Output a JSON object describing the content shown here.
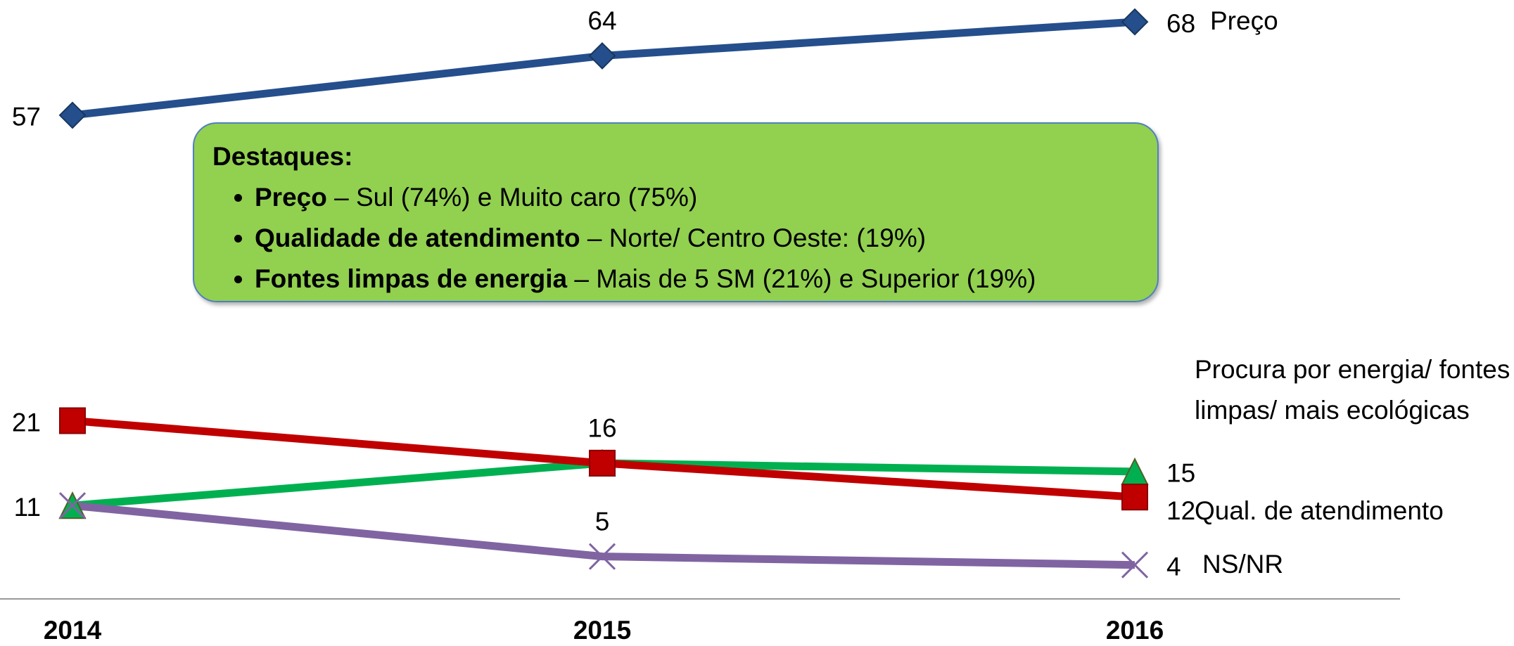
{
  "chart_data": {
    "type": "line",
    "categories": [
      "2014",
      "2015",
      "2016"
    ],
    "ylim": [
      0,
      70
    ],
    "series": [
      {
        "name": "Preço",
        "color": "#254e8c",
        "marker": "diamond",
        "values": [
          57,
          64,
          68
        ],
        "value_labels": [
          "57",
          "64",
          "68"
        ]
      },
      {
        "name": "Procura por energia/ fontes limpas/ mais ecológicas",
        "color": "#00b050",
        "marker": "triangle",
        "values": [
          11,
          16,
          15
        ],
        "value_labels": [
          null,
          null,
          "15"
        ]
      },
      {
        "name": "Qual. de atendimento",
        "color": "#c00000",
        "marker": "square",
        "values": [
          21,
          16,
          12
        ],
        "value_labels": [
          "21",
          "16",
          "12"
        ]
      },
      {
        "name": "NS/NR",
        "color": "#8064a2",
        "marker": "x",
        "values": [
          11,
          5,
          4
        ],
        "value_labels": [
          "11",
          "5",
          "4"
        ]
      }
    ]
  },
  "callout": {
    "title": "Destaques:",
    "items": [
      {
        "bold": "Preço",
        "text": " – Sul (74%) e Muito caro (75%)"
      },
      {
        "bold": "Qualidade de atendimento",
        "text": " – Norte/ Centro Oeste: (19%)"
      },
      {
        "bold": "Fontes limpas de energia",
        "text": " – Mais de 5 SM (21%) e Superior (19%)"
      }
    ]
  }
}
